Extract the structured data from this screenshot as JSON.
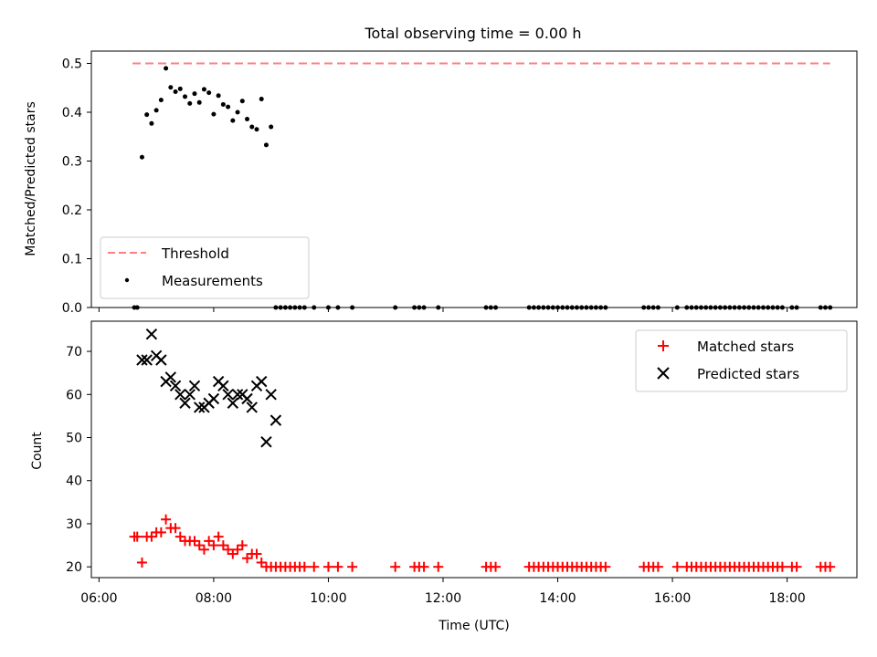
{
  "title": "Total observing time = 0.00 h",
  "chart_data": [
    {
      "type": "scatter",
      "ylabel": "Matched/Predicted stars",
      "xlabel": "",
      "xlim": [
        "05:52",
        "19:13"
      ],
      "ylim": [
        0,
        0.5
      ],
      "yticks": [
        0.0,
        0.1,
        0.2,
        0.3,
        0.4,
        0.5
      ],
      "ytick_labels": [
        "0.0",
        "0.1",
        "0.2",
        "0.3",
        "0.4",
        "0.5"
      ],
      "threshold": {
        "name": "Threshold",
        "value": 0.5,
        "x_range": [
          "06:35",
          "18:45"
        ],
        "color": "#ff7f7f"
      },
      "legend": {
        "placement": "lower-left",
        "entries": [
          "Threshold",
          "Measurements"
        ]
      },
      "series": [
        {
          "name": "Measurements",
          "color": "#000000",
          "points": [
            [
              "06:37",
              0
            ],
            [
              "06:40",
              0
            ],
            [
              "06:45",
              0.308
            ],
            [
              "06:50",
              0.395
            ],
            [
              "06:55",
              0.377
            ],
            [
              "07:00",
              0.404
            ],
            [
              "07:05",
              0.425
            ],
            [
              "07:10",
              0.49
            ],
            [
              "07:15",
              0.451
            ],
            [
              "07:20",
              0.442
            ],
            [
              "07:25",
              0.448
            ],
            [
              "07:30",
              0.432
            ],
            [
              "07:35",
              0.418
            ],
            [
              "07:40",
              0.438
            ],
            [
              "07:45",
              0.42
            ],
            [
              "07:50",
              0.447
            ],
            [
              "07:55",
              0.44
            ],
            [
              "08:00",
              0.396
            ],
            [
              "08:05",
              0.434
            ],
            [
              "08:10",
              0.416
            ],
            [
              "08:15",
              0.411
            ],
            [
              "08:20",
              0.383
            ],
            [
              "08:25",
              0.4
            ],
            [
              "08:30",
              0.423
            ],
            [
              "08:35",
              0.386
            ],
            [
              "08:40",
              0.37
            ],
            [
              "08:45",
              0.365
            ],
            [
              "08:50",
              0.427
            ],
            [
              "08:55",
              0.333
            ],
            [
              "09:00",
              0.37
            ],
            [
              "09:05",
              0
            ],
            [
              "09:10",
              0
            ],
            [
              "09:15",
              0
            ],
            [
              "09:20",
              0
            ],
            [
              "09:25",
              0
            ],
            [
              "09:30",
              0
            ],
            [
              "09:35",
              0
            ],
            [
              "09:45",
              0
            ],
            [
              "10:00",
              0
            ],
            [
              "10:10",
              0
            ],
            [
              "10:25",
              0
            ],
            [
              "11:10",
              0
            ],
            [
              "11:30",
              0
            ],
            [
              "11:35",
              0
            ],
            [
              "11:40",
              0
            ],
            [
              "11:55",
              0
            ],
            [
              "12:45",
              0
            ],
            [
              "12:50",
              0
            ],
            [
              "12:55",
              0
            ],
            [
              "13:30",
              0
            ],
            [
              "13:35",
              0
            ],
            [
              "13:40",
              0
            ],
            [
              "13:45",
              0
            ],
            [
              "13:50",
              0
            ],
            [
              "13:55",
              0
            ],
            [
              "14:00",
              0
            ],
            [
              "14:05",
              0
            ],
            [
              "14:10",
              0
            ],
            [
              "14:15",
              0
            ],
            [
              "14:20",
              0
            ],
            [
              "14:25",
              0
            ],
            [
              "14:30",
              0
            ],
            [
              "14:35",
              0
            ],
            [
              "14:40",
              0
            ],
            [
              "14:45",
              0
            ],
            [
              "14:50",
              0
            ],
            [
              "15:30",
              0
            ],
            [
              "15:35",
              0
            ],
            [
              "15:40",
              0
            ],
            [
              "15:45",
              0
            ],
            [
              "16:05",
              0
            ],
            [
              "16:15",
              0
            ],
            [
              "16:20",
              0
            ],
            [
              "16:25",
              0
            ],
            [
              "16:30",
              0
            ],
            [
              "16:35",
              0
            ],
            [
              "16:40",
              0
            ],
            [
              "16:45",
              0
            ],
            [
              "16:50",
              0
            ],
            [
              "16:55",
              0
            ],
            [
              "17:00",
              0
            ],
            [
              "17:05",
              0
            ],
            [
              "17:10",
              0
            ],
            [
              "17:15",
              0
            ],
            [
              "17:20",
              0
            ],
            [
              "17:25",
              0
            ],
            [
              "17:30",
              0
            ],
            [
              "17:35",
              0
            ],
            [
              "17:40",
              0
            ],
            [
              "17:45",
              0
            ],
            [
              "17:50",
              0
            ],
            [
              "17:55",
              0
            ],
            [
              "18:05",
              0
            ],
            [
              "18:10",
              0
            ],
            [
              "18:35",
              0
            ],
            [
              "18:40",
              0
            ],
            [
              "18:45",
              0
            ]
          ]
        }
      ]
    },
    {
      "type": "scatter",
      "xlabel": "Time (UTC)",
      "ylabel": "Count",
      "xlim": [
        "05:52",
        "19:13"
      ],
      "ylim": [
        17.5,
        77
      ],
      "xticks": [
        "06:00",
        "08:00",
        "10:00",
        "12:00",
        "14:00",
        "16:00",
        "18:00"
      ],
      "yticks": [
        20,
        30,
        40,
        50,
        60,
        70
      ],
      "ytick_labels": [
        "20",
        "30",
        "40",
        "50",
        "60",
        "70"
      ],
      "legend": {
        "placement": "upper-right",
        "entries": [
          "Matched stars",
          "Predicted stars"
        ]
      },
      "series": [
        {
          "name": "Matched stars",
          "marker": "plus",
          "color": "#ff0000",
          "points": [
            [
              "06:37",
              27
            ],
            [
              "06:40",
              27
            ],
            [
              "06:45",
              21
            ],
            [
              "06:50",
              27
            ],
            [
              "06:55",
              27
            ],
            [
              "07:00",
              28
            ],
            [
              "07:05",
              28
            ],
            [
              "07:10",
              31
            ],
            [
              "07:15",
              29
            ],
            [
              "07:20",
              29
            ],
            [
              "07:25",
              27
            ],
            [
              "07:30",
              26
            ],
            [
              "07:35",
              26
            ],
            [
              "07:40",
              26
            ],
            [
              "07:45",
              25
            ],
            [
              "07:50",
              24
            ],
            [
              "07:55",
              26
            ],
            [
              "08:00",
              25
            ],
            [
              "08:05",
              27
            ],
            [
              "08:10",
              25
            ],
            [
              "08:15",
              24
            ],
            [
              "08:20",
              23
            ],
            [
              "08:25",
              24
            ],
            [
              "08:30",
              25
            ],
            [
              "08:35",
              22
            ],
            [
              "08:40",
              23
            ],
            [
              "08:45",
              23
            ],
            [
              "08:50",
              21
            ],
            [
              "08:55",
              20
            ],
            [
              "09:00",
              20
            ],
            [
              "09:05",
              20
            ],
            [
              "09:10",
              20
            ],
            [
              "09:15",
              20
            ],
            [
              "09:20",
              20
            ],
            [
              "09:25",
              20
            ],
            [
              "09:30",
              20
            ],
            [
              "09:35",
              20
            ],
            [
              "09:45",
              20
            ],
            [
              "10:00",
              20
            ],
            [
              "10:10",
              20
            ],
            [
              "10:25",
              20
            ],
            [
              "11:10",
              20
            ],
            [
              "11:30",
              20
            ],
            [
              "11:35",
              20
            ],
            [
              "11:40",
              20
            ],
            [
              "11:55",
              20
            ],
            [
              "12:45",
              20
            ],
            [
              "12:50",
              20
            ],
            [
              "12:55",
              20
            ],
            [
              "13:30",
              20
            ],
            [
              "13:35",
              20
            ],
            [
              "13:40",
              20
            ],
            [
              "13:45",
              20
            ],
            [
              "13:50",
              20
            ],
            [
              "13:55",
              20
            ],
            [
              "14:00",
              20
            ],
            [
              "14:05",
              20
            ],
            [
              "14:10",
              20
            ],
            [
              "14:15",
              20
            ],
            [
              "14:20",
              20
            ],
            [
              "14:25",
              20
            ],
            [
              "14:30",
              20
            ],
            [
              "14:35",
              20
            ],
            [
              "14:40",
              20
            ],
            [
              "14:45",
              20
            ],
            [
              "14:50",
              20
            ],
            [
              "15:30",
              20
            ],
            [
              "15:35",
              20
            ],
            [
              "15:40",
              20
            ],
            [
              "15:45",
              20
            ],
            [
              "16:05",
              20
            ],
            [
              "16:15",
              20
            ],
            [
              "16:20",
              20
            ],
            [
              "16:25",
              20
            ],
            [
              "16:30",
              20
            ],
            [
              "16:35",
              20
            ],
            [
              "16:40",
              20
            ],
            [
              "16:45",
              20
            ],
            [
              "16:50",
              20
            ],
            [
              "16:55",
              20
            ],
            [
              "17:00",
              20
            ],
            [
              "17:05",
              20
            ],
            [
              "17:10",
              20
            ],
            [
              "17:15",
              20
            ],
            [
              "17:20",
              20
            ],
            [
              "17:25",
              20
            ],
            [
              "17:30",
              20
            ],
            [
              "17:35",
              20
            ],
            [
              "17:40",
              20
            ],
            [
              "17:45",
              20
            ],
            [
              "17:50",
              20
            ],
            [
              "17:55",
              20
            ],
            [
              "18:05",
              20
            ],
            [
              "18:10",
              20
            ],
            [
              "18:35",
              20
            ],
            [
              "18:40",
              20
            ],
            [
              "18:45",
              20
            ]
          ]
        },
        {
          "name": "Predicted stars",
          "marker": "x",
          "color": "#000000",
          "points": [
            [
              "06:45",
              68
            ],
            [
              "06:50",
              68
            ],
            [
              "06:55",
              74
            ],
            [
              "07:00",
              69
            ],
            [
              "07:05",
              68
            ],
            [
              "07:10",
              63
            ],
            [
              "07:15",
              64
            ],
            [
              "07:20",
              62
            ],
            [
              "07:25",
              60
            ],
            [
              "07:30",
              58
            ],
            [
              "07:35",
              60
            ],
            [
              "07:40",
              62
            ],
            [
              "07:45",
              57
            ],
            [
              "07:50",
              57
            ],
            [
              "07:55",
              58
            ],
            [
              "08:00",
              59
            ],
            [
              "08:05",
              63
            ],
            [
              "08:10",
              62
            ],
            [
              "08:15",
              60
            ],
            [
              "08:20",
              58
            ],
            [
              "08:25",
              60
            ],
            [
              "08:30",
              60
            ],
            [
              "08:35",
              59
            ],
            [
              "08:40",
              57
            ],
            [
              "08:45",
              62
            ],
            [
              "08:50",
              63
            ],
            [
              "08:55",
              49
            ],
            [
              "09:00",
              60
            ],
            [
              "09:05",
              54
            ]
          ]
        }
      ]
    }
  ]
}
